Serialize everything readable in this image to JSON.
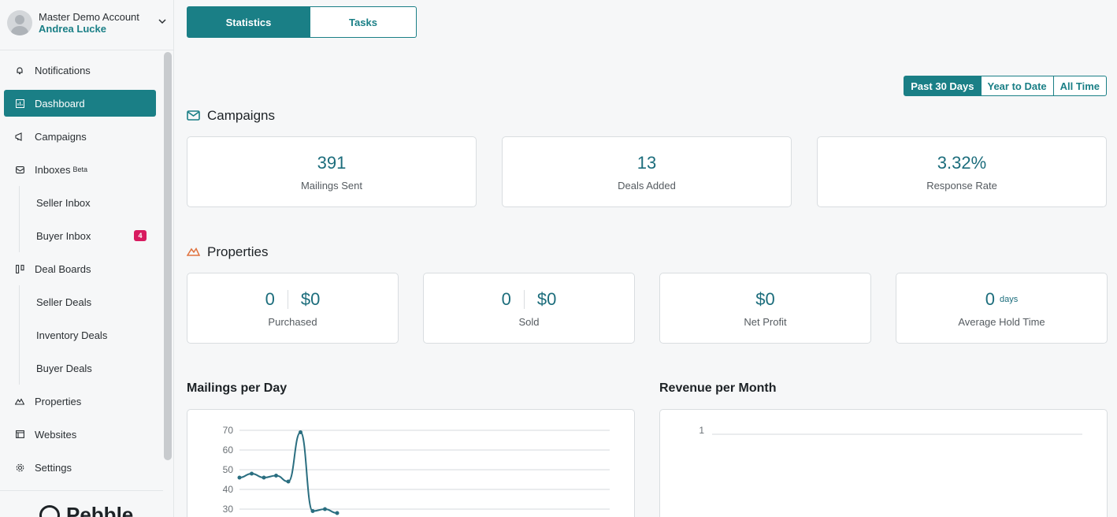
{
  "account": {
    "name": "Master Demo Account",
    "user": "Andrea Lucke"
  },
  "nav": {
    "notifications": "Notifications",
    "dashboard": "Dashboard",
    "campaigns": "Campaigns",
    "inboxes": "Inboxes",
    "inboxes_tag": "Beta",
    "seller_inbox": "Seller Inbox",
    "buyer_inbox": "Buyer Inbox",
    "buyer_inbox_count": "4",
    "deal_boards": "Deal Boards",
    "seller_deals": "Seller Deals",
    "inventory_deals": "Inventory Deals",
    "buyer_deals": "Buyer Deals",
    "properties": "Properties",
    "websites": "Websites",
    "settings": "Settings"
  },
  "logo": "Pebble",
  "tabs": {
    "statistics": "Statistics",
    "tasks": "Tasks"
  },
  "range": {
    "past30": "Past 30 Days",
    "ytd": "Year to Date",
    "all": "All Time"
  },
  "campaigns": {
    "title": "Campaigns",
    "mailings_value": "391",
    "mailings_label": "Mailings Sent",
    "deals_value": "13",
    "deals_label": "Deals Added",
    "response_value": "3.32%",
    "response_label": "Response Rate"
  },
  "properties": {
    "title": "Properties",
    "purchased_count": "0",
    "purchased_amount": "$0",
    "purchased_label": "Purchased",
    "sold_count": "0",
    "sold_amount": "$0",
    "sold_label": "Sold",
    "net_profit_value": "$0",
    "net_profit_label": "Net Profit",
    "hold_value": "0",
    "hold_unit": "days",
    "hold_label": "Average Hold Time"
  },
  "charts": {
    "mailings_title": "Mailings per Day",
    "revenue_title": "Revenue per Month"
  },
  "colors": {
    "accent": "#1a7f86",
    "badge": "#d81b60",
    "value_text": "#1c6d7c"
  },
  "chart_data": [
    {
      "type": "line",
      "title": "Mailings per Day",
      "yticks": [
        70,
        60,
        50,
        40,
        30
      ],
      "series": [
        {
          "values": [
            46,
            48,
            46,
            47,
            44,
            69,
            29,
            30,
            28
          ]
        }
      ]
    },
    {
      "type": "line",
      "title": "Revenue per Month",
      "yticks": [
        1
      ],
      "series": []
    }
  ]
}
